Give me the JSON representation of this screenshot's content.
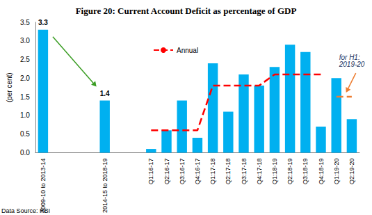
{
  "chart_data": {
    "type": "bar",
    "title": "Figure 20: Current Account Deficit as percentage of GDP",
    "y_label": "(per cent)",
    "source": "Data Source: RBI",
    "categories": [
      "2009-10 to 2013-14",
      null,
      null,
      null,
      "2014-15 to 2018-19",
      null,
      null,
      "Q1:16-17",
      "Q2:16-17",
      "Q3:16-17",
      "Q4:16-17",
      "Q1:17-18",
      "Q2:17-18",
      "Q3:17-18",
      "Q4:17-18",
      "Q1:18-19",
      "Q2:18-19",
      "Q3:18-19",
      "Q4:18-19",
      "Q1:19-20",
      "Q2:19-20"
    ],
    "values": [
      3.3,
      null,
      null,
      null,
      1.4,
      null,
      null,
      0.1,
      0.6,
      1.4,
      0.4,
      2.4,
      1.1,
      2.1,
      1.8,
      2.3,
      2.9,
      2.7,
      0.7,
      2.0,
      0.9
    ],
    "value_labels": [
      "3.3",
      null,
      null,
      null,
      "1.4",
      null,
      null,
      null,
      null,
      null,
      null,
      null,
      null,
      null,
      null,
      null,
      null,
      null,
      null,
      null,
      null
    ],
    "color": "#00b0f0",
    "series": [
      {
        "name": "Annual",
        "type": "line",
        "color": "#ff0000",
        "line_style": "dashed",
        "values": [
          null,
          null,
          null,
          null,
          null,
          null,
          null,
          0.6,
          0.6,
          0.6,
          0.6,
          1.8,
          1.8,
          1.8,
          1.8,
          2.1,
          2.1,
          2.1,
          2.1,
          null,
          null
        ]
      },
      {
        "name": "for H1: 2019-20",
        "type": "line",
        "color": "#ed7d31",
        "line_style": "dashed",
        "values": [
          null,
          null,
          null,
          null,
          null,
          null,
          null,
          null,
          null,
          null,
          null,
          null,
          null,
          null,
          null,
          null,
          null,
          null,
          null,
          1.5,
          1.5
        ]
      }
    ],
    "ylim": [
      0,
      3.5
    ],
    "yticks": [
      {
        "value": 0,
        "label": "0.0"
      },
      {
        "value": 0.5,
        "label": "0.5"
      },
      {
        "value": 1,
        "label": "1.0"
      },
      {
        "value": 1.5,
        "label": "1.5"
      },
      {
        "value": 2,
        "label": "2.0"
      },
      {
        "value": 2.5,
        "label": "2.5"
      },
      {
        "value": 3,
        "label": "3.0"
      },
      {
        "value": 3.5,
        "label": "3.5"
      }
    ],
    "grid": false,
    "legend": "top"
  }
}
